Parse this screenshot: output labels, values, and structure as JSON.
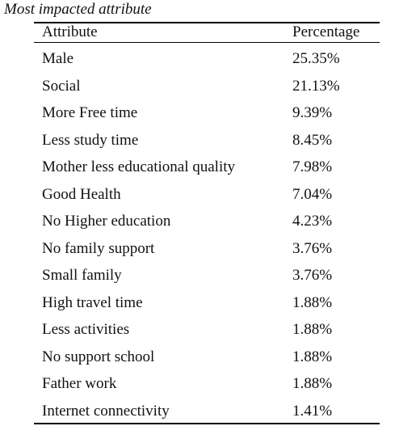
{
  "table": {
    "title": "Most impacted attribute",
    "header": [
      "Attribute",
      "Percentage"
    ],
    "rows": [
      [
        "Male",
        "25.35%"
      ],
      [
        "Social",
        "21.13%"
      ],
      [
        "More Free time",
        "9.39%"
      ],
      [
        "Less study time",
        "8.45%"
      ],
      [
        "Mother less educational quality",
        "7.98%"
      ],
      [
        "Good Health",
        "7.04%"
      ],
      [
        "No Higher education",
        "4.23%"
      ],
      [
        "No family support",
        "3.76%"
      ],
      [
        "Small family",
        "3.76%"
      ],
      [
        "High travel time",
        "1.88%"
      ],
      [
        "Less activities",
        "1.88%"
      ],
      [
        "No support school",
        "1.88%"
      ],
      [
        "Father work",
        "1.88%"
      ],
      [
        "Internet connectivity",
        "1.41%"
      ]
    ]
  }
}
